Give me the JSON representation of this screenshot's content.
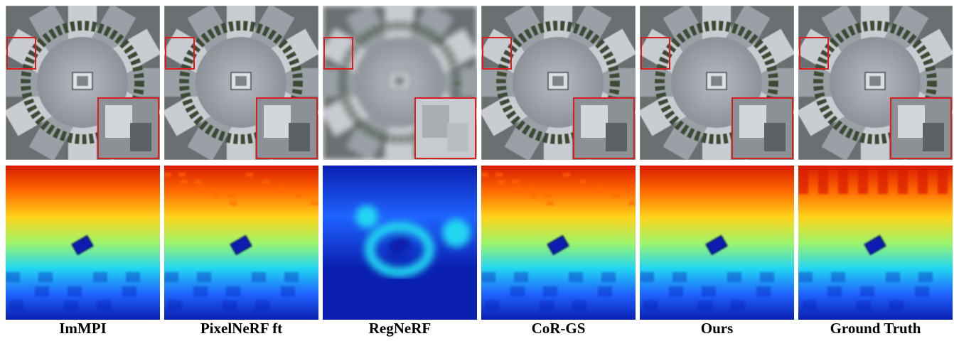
{
  "figure": {
    "methods": [
      {
        "label": "ImMPI",
        "depth_theme": "smooth-full"
      },
      {
        "label": "PixelNeRF ft",
        "depth_theme": "noisy-full"
      },
      {
        "label": "RegNeRF",
        "depth_theme": "blue-blobs"
      },
      {
        "label": "CoR-GS",
        "depth_theme": "mid-full"
      },
      {
        "label": "Ours",
        "depth_theme": "smooth-full"
      },
      {
        "label": "Ground Truth",
        "depth_theme": "sharp-full"
      }
    ],
    "zoom_box_color": "#d42020",
    "depth_colormap": [
      "#0a1fb0",
      "#1f63ff",
      "#22d6f2",
      "#9ff56a",
      "#ffd21a",
      "#ff6a00",
      "#d81a00"
    ]
  }
}
